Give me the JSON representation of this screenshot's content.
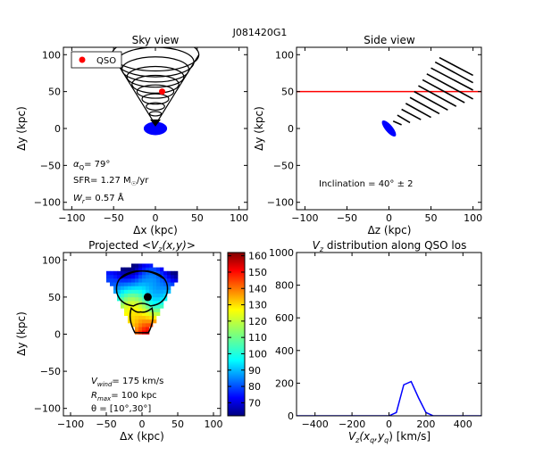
{
  "figure_title": "J081420G1",
  "colors": {
    "axis": "#000000",
    "qso": "#ff0000",
    "los_line": "#ff0000",
    "galaxy": "#0000ff",
    "vz_line": "#0000ff",
    "cone": "#000000"
  },
  "chart_data": [
    {
      "type": "scatter",
      "title": "Sky view",
      "xlabel": "Δx (kpc)",
      "ylabel": "Δy (kpc)",
      "xlim": [
        -110,
        110
      ],
      "ylim": [
        -110,
        110
      ],
      "xticks": [
        -100,
        -50,
        0,
        50,
        100
      ],
      "yticks": [
        -100,
        -50,
        0,
        50,
        100
      ],
      "xtick_labels": [
        "−100",
        "−50",
        "0",
        "50",
        "100"
      ],
      "ytick_labels": [
        "−100",
        "−50",
        "0",
        "50",
        "100"
      ],
      "legend": {
        "placement": "top-left",
        "entries": [
          "QSO"
        ]
      },
      "series": [
        {
          "name": "QSO",
          "x": [
            8
          ],
          "y": [
            50
          ]
        }
      ],
      "galaxy": {
        "x": 0,
        "y": 0,
        "rx": 14,
        "ry": 9
      },
      "cone_apex": {
        "x": 0,
        "y": 5
      },
      "cone_rings": [
        {
          "cy": 100,
          "rx": 52,
          "ry": 22
        },
        {
          "cy": 90,
          "rx": 46,
          "ry": 20
        },
        {
          "cy": 80,
          "rx": 40,
          "ry": 17
        },
        {
          "cy": 70,
          "rx": 34,
          "ry": 14
        },
        {
          "cy": 60,
          "rx": 28,
          "ry": 12
        },
        {
          "cy": 50,
          "rx": 22,
          "ry": 9
        },
        {
          "cy": 40,
          "rx": 16,
          "ry": 7
        },
        {
          "cy": 30,
          "rx": 11,
          "ry": 5
        },
        {
          "cy": 20,
          "rx": 7,
          "ry": 3
        }
      ],
      "annotations": {
        "alpha_label": "α",
        "alpha_sub": "Q",
        "alpha_value": "=  79°",
        "sfr": "SFR= 1.27 M",
        "sfr_sub": "☉",
        "sfr_unit": "/yr",
        "wr_label": "W",
        "wr_sub": "r",
        "wr_value": "= 0.57 Å"
      }
    },
    {
      "type": "line",
      "title": "Side view",
      "xlabel": "Δz (kpc)",
      "ylabel": "Δy (kpc)",
      "xlim": [
        -110,
        110
      ],
      "ylim": [
        -110,
        110
      ],
      "xticks": [
        -100,
        -50,
        0,
        50,
        100
      ],
      "yticks": [
        -100,
        -50,
        0,
        50,
        100
      ],
      "xtick_labels": [
        "−100",
        "−50",
        "0",
        "50",
        "100"
      ],
      "ytick_labels": [
        "−100",
        "−50",
        "0",
        "50",
        "100"
      ],
      "los_y": 50,
      "galaxy": {
        "x": 0,
        "y": 0,
        "rx": 12,
        "ry": 5,
        "angle": 50
      },
      "cone_lines": [
        {
          "x1": 5,
          "y1": 10,
          "x2": 15,
          "y2": 5
        },
        {
          "x1": 10,
          "y1": 18,
          "x2": 25,
          "y2": 8
        },
        {
          "x1": 15,
          "y1": 26,
          "x2": 38,
          "y2": 12
        },
        {
          "x1": 20,
          "y1": 34,
          "x2": 50,
          "y2": 15
        },
        {
          "x1": 25,
          "y1": 42,
          "x2": 60,
          "y2": 20
        },
        {
          "x1": 30,
          "y1": 50,
          "x2": 70,
          "y2": 25
        },
        {
          "x1": 35,
          "y1": 58,
          "x2": 80,
          "y2": 30
        },
        {
          "x1": 40,
          "y1": 66,
          "x2": 90,
          "y2": 35
        },
        {
          "x1": 45,
          "y1": 74,
          "x2": 100,
          "y2": 40
        },
        {
          "x1": 50,
          "y1": 82,
          "x2": 100,
          "y2": 52
        },
        {
          "x1": 55,
          "y1": 90,
          "x2": 100,
          "y2": 62
        },
        {
          "x1": 60,
          "y1": 96,
          "x2": 100,
          "y2": 72
        }
      ],
      "annotation": "Inclination =  40°  ±  2"
    },
    {
      "type": "heatmap",
      "title_prefix": "Projected  ",
      "title_math": "<V",
      "title_sub": "z",
      "title_suffix": "(x,y)>",
      "xlabel": "Δx (kpc)",
      "ylabel": "Δy (kpc)",
      "xlim": [
        -110,
        110
      ],
      "ylim": [
        -110,
        110
      ],
      "xticks": [
        -100,
        -50,
        0,
        50,
        100
      ],
      "yticks": [
        -100,
        -50,
        0,
        50,
        100
      ],
      "xtick_labels": [
        "−100",
        "−50",
        "0",
        "50",
        "100"
      ],
      "ytick_labels": [
        "−100",
        "−50",
        "0",
        "50",
        "100"
      ],
      "cell_size_kpc": 5,
      "colorbar": {
        "min": 62,
        "max": 162,
        "ticks": [
          70,
          80,
          90,
          100,
          110,
          120,
          130,
          140,
          150,
          160
        ],
        "tick_labels": [
          "70",
          "80",
          "90",
          "100",
          "110",
          "120",
          "130",
          "140",
          "150",
          "160"
        ]
      },
      "qso": {
        "x": 8,
        "y": 50
      },
      "annotations": {
        "vwind_label": "V",
        "vwind_sub": "wind",
        "vwind_value": "= 175 km/s",
        "rmax_label": "R",
        "rmax_sub": "max",
        "rmax_value": "= 100 kpc",
        "theta": "θ = [10°,30°]"
      }
    },
    {
      "type": "line",
      "title_prefix": "V",
      "title_sub": "z",
      "title_suffix": " distribution along QSO los",
      "xlabel_prefix": "V",
      "xlabel_sub": "z",
      "xlabel_mid": "(x",
      "xlabel_sub2": "q",
      "xlabel_mid2": ",y",
      "xlabel_sub3": "q",
      "xlabel_suffix": ") [km/s]",
      "ylabel": "",
      "xlim": [
        -500,
        500
      ],
      "ylim": [
        0,
        1000
      ],
      "xticks": [
        -400,
        -200,
        0,
        200,
        400
      ],
      "yticks": [
        0,
        200,
        400,
        600,
        800,
        1000
      ],
      "xtick_labels": [
        "−400",
        "−200",
        "0",
        "200",
        "400"
      ],
      "ytick_labels": [
        "0",
        "200",
        "400",
        "600",
        "800",
        "1000"
      ],
      "series": [
        {
          "x": [
            -500,
            0,
            40,
            80,
            120,
            160,
            200,
            240,
            500
          ],
          "y": [
            0,
            0,
            20,
            190,
            210,
            110,
            20,
            0,
            0
          ]
        }
      ]
    }
  ]
}
